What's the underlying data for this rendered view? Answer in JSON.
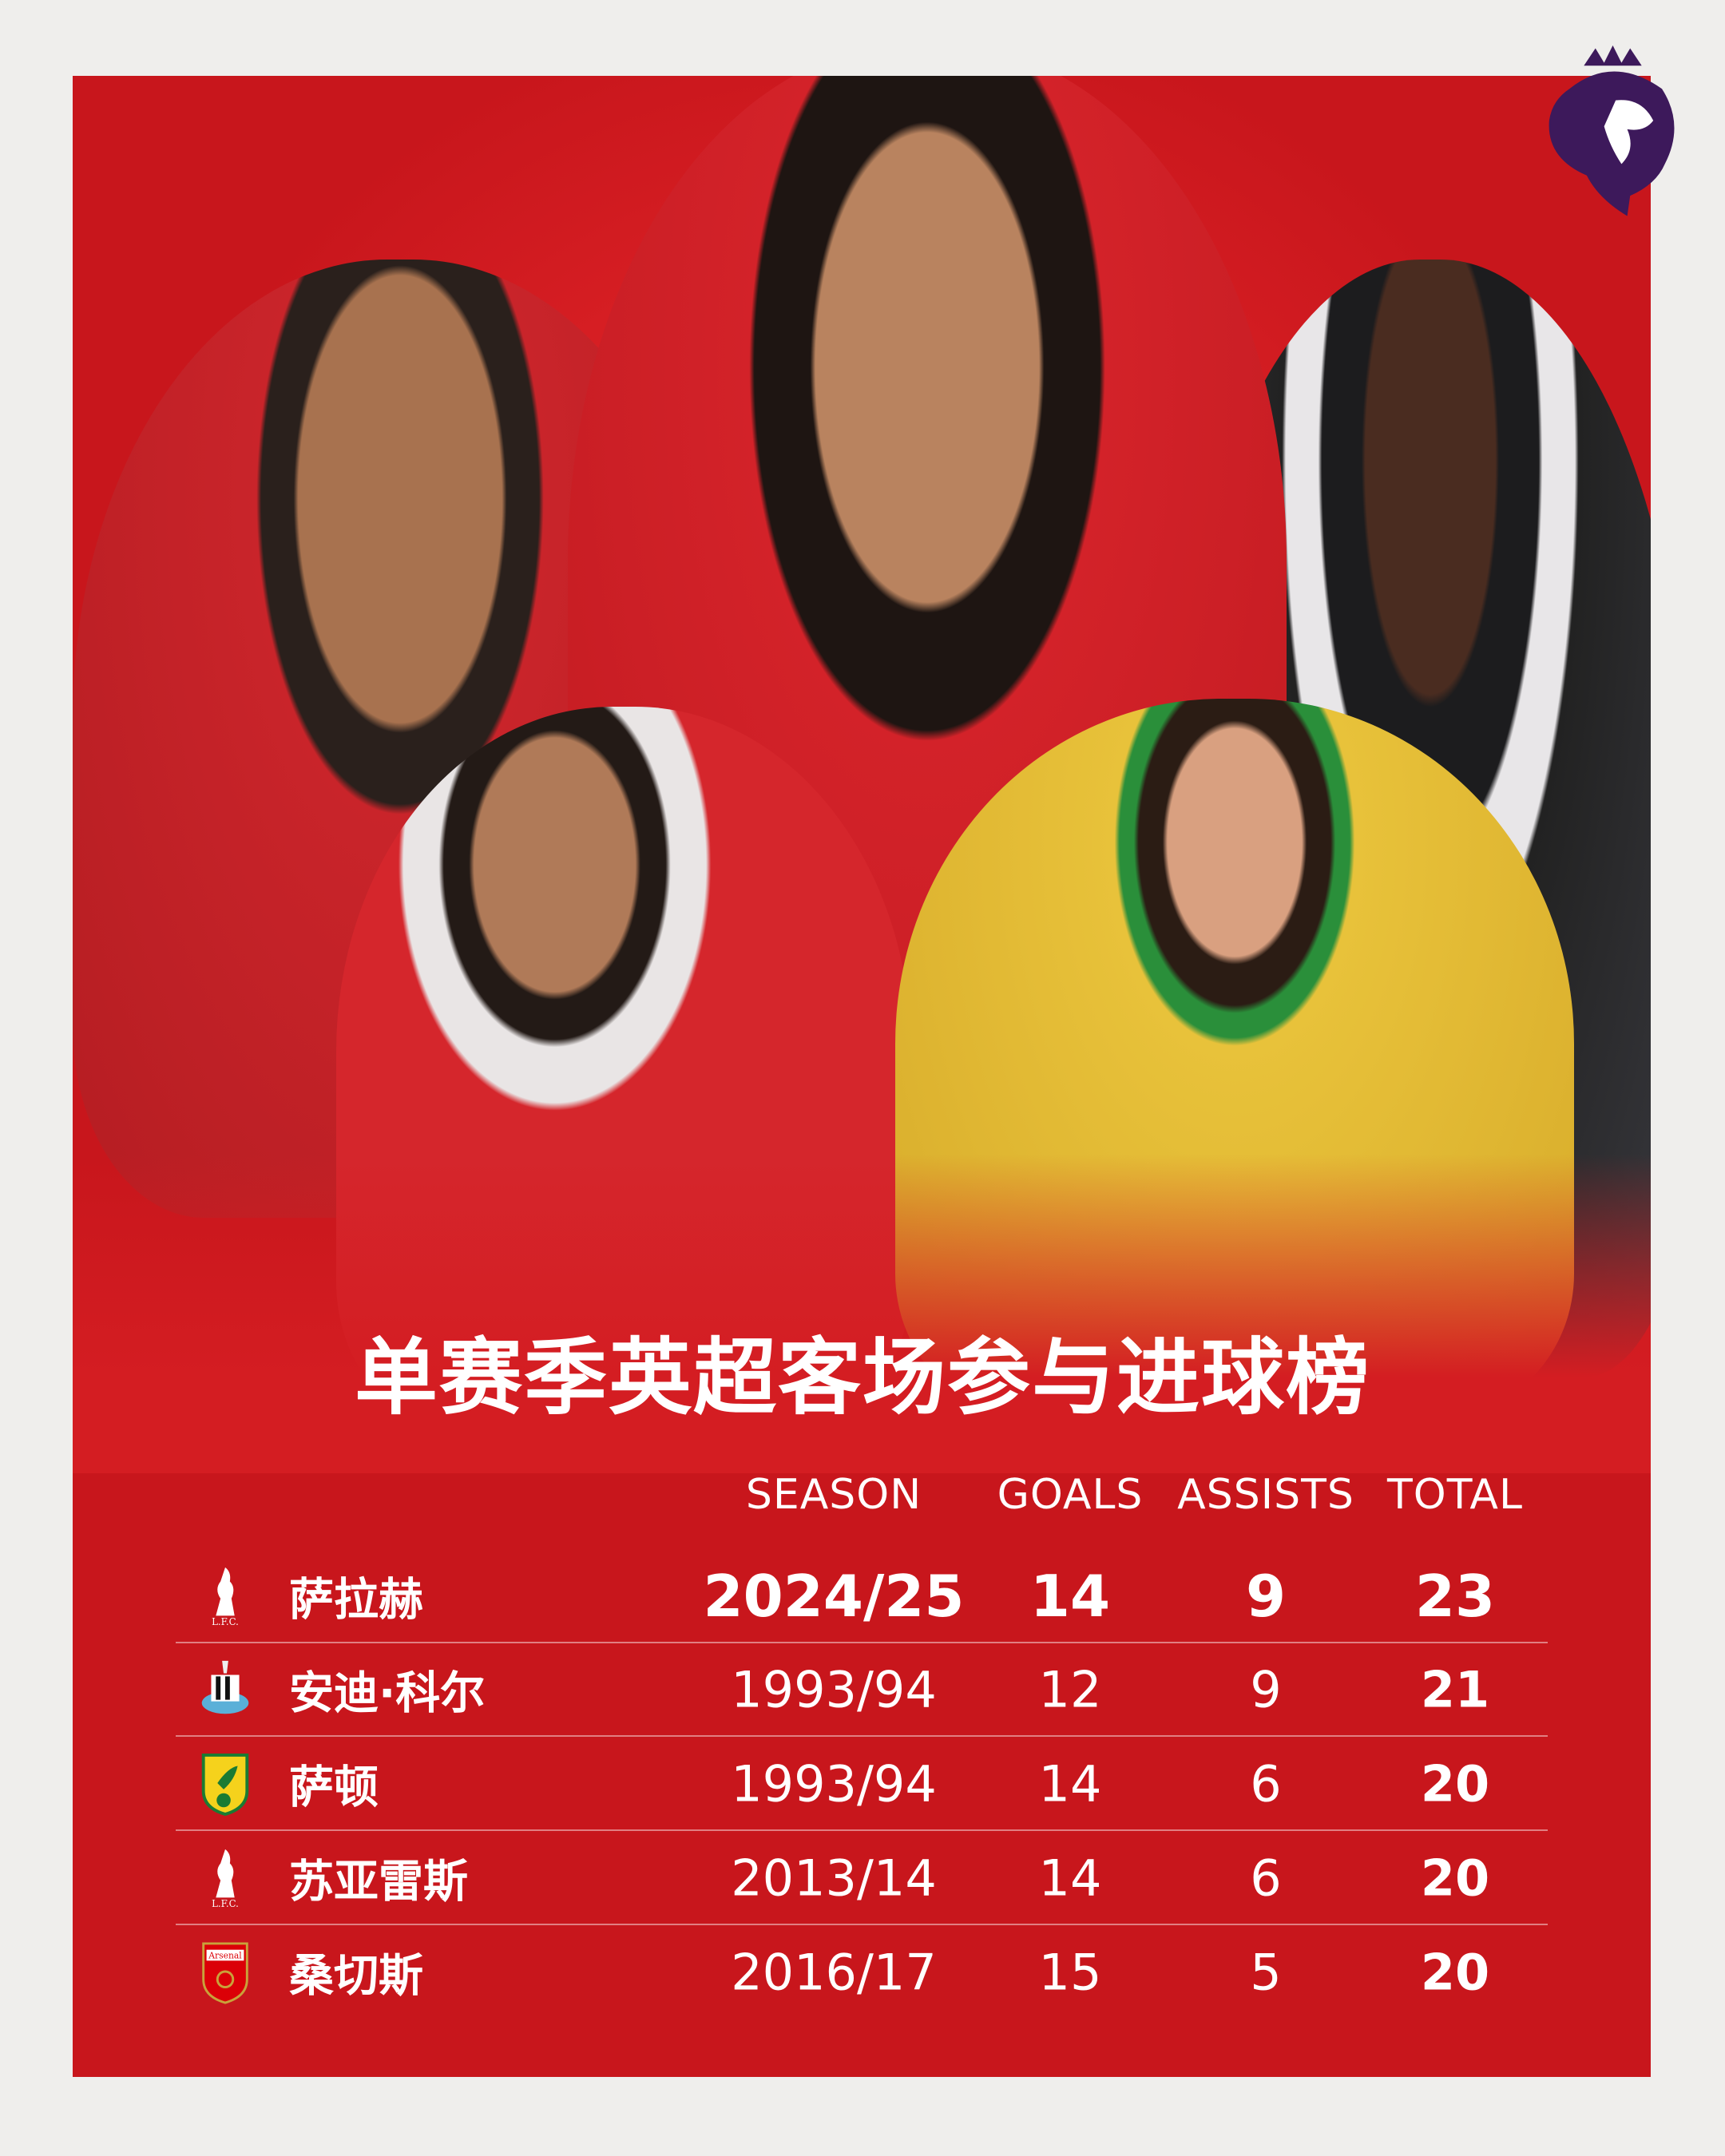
{
  "title": "单赛季英超客场参与进球榜",
  "colors": {
    "panel": "#d81f24",
    "background": "#efeeec",
    "text": "#ffffff",
    "league": "#3d195b"
  },
  "logo": "premier-league-lion-logo",
  "table": {
    "headers": [
      "SEASON",
      "GOALS",
      "ASSISTS",
      "TOTAL"
    ],
    "rows": [
      {
        "club": "liverpool",
        "name": "萨拉赫",
        "season": "2024/25",
        "goals": "14",
        "assists": "9",
        "total": "23"
      },
      {
        "club": "newcastle",
        "name": "安迪·科尔",
        "season": "1993/94",
        "goals": "12",
        "assists": "9",
        "total": "21"
      },
      {
        "club": "norwich",
        "name": "萨顿",
        "season": "1993/94",
        "goals": "14",
        "assists": "6",
        "total": "20"
      },
      {
        "club": "liverpool",
        "name": "苏亚雷斯",
        "season": "2013/14",
        "goals": "14",
        "assists": "6",
        "total": "20"
      },
      {
        "club": "arsenal",
        "name": "桑切斯",
        "season": "2016/17",
        "goals": "15",
        "assists": "5",
        "total": "20"
      }
    ]
  }
}
